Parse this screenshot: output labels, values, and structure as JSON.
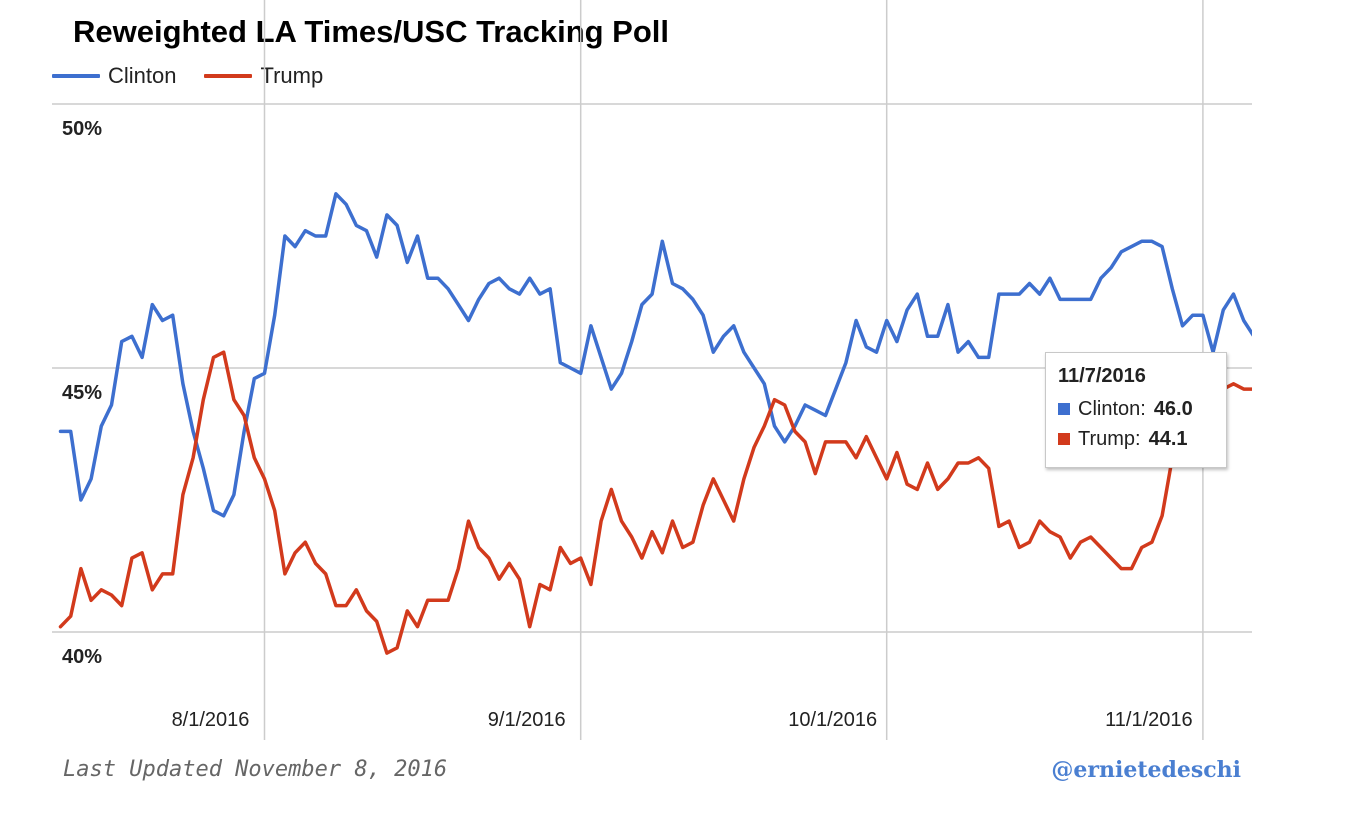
{
  "title": "Reweighted LA Times/USC Tracking Poll",
  "footer": {
    "updated": "Last Updated November 8, 2016",
    "credit": "@ernietedeschi"
  },
  "tooltip": {
    "date": "11/7/2016",
    "clinton_label": "Clinton:",
    "clinton_value": "46.0",
    "trump_label": "Trump:",
    "trump_value": "44.1"
  },
  "colors": {
    "clinton": "#3d6fcf",
    "trump": "#d23a1c",
    "grid": "#cccccc"
  },
  "chart_data": {
    "type": "line",
    "title": "Reweighted LA Times/USC Tracking Poll",
    "xlabel": "",
    "ylabel": "",
    "ylim": [
      40,
      50
    ],
    "yticks": [
      {
        "value": 50,
        "label": "50%"
      },
      {
        "value": 45,
        "label": "45%"
      },
      {
        "value": 40,
        "label": "40%"
      }
    ],
    "xticks": [
      {
        "date": "2016-08-01",
        "label": "8/1/2016"
      },
      {
        "date": "2016-09-01",
        "label": "9/1/2016"
      },
      {
        "date": "2016-10-01",
        "label": "10/1/2016"
      },
      {
        "date": "2016-11-01",
        "label": "11/1/2016"
      }
    ],
    "x_range": [
      "2016-07-12",
      "2016-11-07"
    ],
    "grid": true,
    "legend_position": "top-left",
    "series": [
      {
        "name": "Clinton",
        "color": "#3d6fcf",
        "points": [
          [
            "2016-07-12",
            43.8
          ],
          [
            "2016-07-13",
            43.8
          ],
          [
            "2016-07-14",
            42.5
          ],
          [
            "2016-07-15",
            42.9
          ],
          [
            "2016-07-16",
            43.9
          ],
          [
            "2016-07-17",
            44.3
          ],
          [
            "2016-07-18",
            45.5
          ],
          [
            "2016-07-19",
            45.6
          ],
          [
            "2016-07-20",
            45.2
          ],
          [
            "2016-07-21",
            46.2
          ],
          [
            "2016-07-22",
            45.9
          ],
          [
            "2016-07-23",
            46.0
          ],
          [
            "2016-07-24",
            44.7
          ],
          [
            "2016-07-25",
            43.8
          ],
          [
            "2016-07-26",
            43.1
          ],
          [
            "2016-07-27",
            42.3
          ],
          [
            "2016-07-28",
            42.2
          ],
          [
            "2016-07-29",
            42.6
          ],
          [
            "2016-07-30",
            43.8
          ],
          [
            "2016-07-31",
            44.8
          ],
          [
            "2016-08-01",
            44.9
          ],
          [
            "2016-08-02",
            46.0
          ],
          [
            "2016-08-03",
            47.5
          ],
          [
            "2016-08-04",
            47.3
          ],
          [
            "2016-08-05",
            47.6
          ],
          [
            "2016-08-06",
            47.5
          ],
          [
            "2016-08-07",
            47.5
          ],
          [
            "2016-08-08",
            48.3
          ],
          [
            "2016-08-09",
            48.1
          ],
          [
            "2016-08-10",
            47.7
          ],
          [
            "2016-08-11",
            47.6
          ],
          [
            "2016-08-12",
            47.1
          ],
          [
            "2016-08-13",
            47.9
          ],
          [
            "2016-08-14",
            47.7
          ],
          [
            "2016-08-15",
            47.0
          ],
          [
            "2016-08-16",
            47.5
          ],
          [
            "2016-08-17",
            46.7
          ],
          [
            "2016-08-18",
            46.7
          ],
          [
            "2016-08-19",
            46.5
          ],
          [
            "2016-08-20",
            46.2
          ],
          [
            "2016-08-21",
            45.9
          ],
          [
            "2016-08-22",
            46.3
          ],
          [
            "2016-08-23",
            46.6
          ],
          [
            "2016-08-24",
            46.7
          ],
          [
            "2016-08-25",
            46.5
          ],
          [
            "2016-08-26",
            46.4
          ],
          [
            "2016-08-27",
            46.7
          ],
          [
            "2016-08-28",
            46.4
          ],
          [
            "2016-08-29",
            46.5
          ],
          [
            "2016-08-30",
            45.1
          ],
          [
            "2016-08-31",
            45.0
          ],
          [
            "2016-09-01",
            44.9
          ],
          [
            "2016-09-02",
            45.8
          ],
          [
            "2016-09-03",
            45.2
          ],
          [
            "2016-09-04",
            44.6
          ],
          [
            "2016-09-05",
            44.9
          ],
          [
            "2016-09-06",
            45.5
          ],
          [
            "2016-09-07",
            46.2
          ],
          [
            "2016-09-08",
            46.4
          ],
          [
            "2016-09-09",
            47.4
          ],
          [
            "2016-09-10",
            46.6
          ],
          [
            "2016-09-11",
            46.5
          ],
          [
            "2016-09-12",
            46.3
          ],
          [
            "2016-09-13",
            46.0
          ],
          [
            "2016-09-14",
            45.3
          ],
          [
            "2016-09-15",
            45.6
          ],
          [
            "2016-09-16",
            45.8
          ],
          [
            "2016-09-17",
            45.3
          ],
          [
            "2016-09-18",
            45.0
          ],
          [
            "2016-09-19",
            44.7
          ],
          [
            "2016-09-20",
            43.9
          ],
          [
            "2016-09-21",
            43.6
          ],
          [
            "2016-09-22",
            43.9
          ],
          [
            "2016-09-23",
            44.3
          ],
          [
            "2016-09-24",
            44.2
          ],
          [
            "2016-09-25",
            44.1
          ],
          [
            "2016-09-26",
            44.6
          ],
          [
            "2016-09-27",
            45.1
          ],
          [
            "2016-09-28",
            45.9
          ],
          [
            "2016-09-29",
            45.4
          ],
          [
            "2016-09-30",
            45.3
          ],
          [
            "2016-10-01",
            45.9
          ],
          [
            "2016-10-02",
            45.5
          ],
          [
            "2016-10-03",
            46.1
          ],
          [
            "2016-10-04",
            46.4
          ],
          [
            "2016-10-05",
            45.6
          ],
          [
            "2016-10-06",
            45.6
          ],
          [
            "2016-10-07",
            46.2
          ],
          [
            "2016-10-08",
            45.3
          ],
          [
            "2016-10-09",
            45.5
          ],
          [
            "2016-10-10",
            45.2
          ],
          [
            "2016-10-11",
            45.2
          ],
          [
            "2016-10-12",
            46.4
          ],
          [
            "2016-10-13",
            46.4
          ],
          [
            "2016-10-14",
            46.4
          ],
          [
            "2016-10-15",
            46.6
          ],
          [
            "2016-10-16",
            46.4
          ],
          [
            "2016-10-17",
            46.7
          ],
          [
            "2016-10-18",
            46.3
          ],
          [
            "2016-10-19",
            46.3
          ],
          [
            "2016-10-20",
            46.3
          ],
          [
            "2016-10-21",
            46.3
          ],
          [
            "2016-10-22",
            46.7
          ],
          [
            "2016-10-23",
            46.9
          ],
          [
            "2016-10-24",
            47.2
          ],
          [
            "2016-10-25",
            47.3
          ],
          [
            "2016-10-26",
            47.4
          ],
          [
            "2016-10-27",
            47.4
          ],
          [
            "2016-10-28",
            47.3
          ],
          [
            "2016-10-29",
            46.5
          ],
          [
            "2016-10-30",
            45.8
          ],
          [
            "2016-10-31",
            46.0
          ],
          [
            "2016-11-01",
            46.0
          ],
          [
            "2016-11-02",
            45.3
          ],
          [
            "2016-11-03",
            46.1
          ],
          [
            "2016-11-04",
            46.4
          ],
          [
            "2016-11-05",
            45.9
          ],
          [
            "2016-11-06",
            45.6
          ],
          [
            "2016-11-07",
            46.0
          ]
        ]
      },
      {
        "name": "Trump",
        "color": "#d23a1c",
        "points": [
          [
            "2016-07-12",
            40.1
          ],
          [
            "2016-07-13",
            40.3
          ],
          [
            "2016-07-14",
            41.2
          ],
          [
            "2016-07-15",
            40.6
          ],
          [
            "2016-07-16",
            40.8
          ],
          [
            "2016-07-17",
            40.7
          ],
          [
            "2016-07-18",
            40.5
          ],
          [
            "2016-07-19",
            41.4
          ],
          [
            "2016-07-20",
            41.5
          ],
          [
            "2016-07-21",
            40.8
          ],
          [
            "2016-07-22",
            41.1
          ],
          [
            "2016-07-23",
            41.1
          ],
          [
            "2016-07-24",
            42.6
          ],
          [
            "2016-07-25",
            43.3
          ],
          [
            "2016-07-26",
            44.4
          ],
          [
            "2016-07-27",
            45.2
          ],
          [
            "2016-07-28",
            45.3
          ],
          [
            "2016-07-29",
            44.4
          ],
          [
            "2016-07-30",
            44.1
          ],
          [
            "2016-07-31",
            43.3
          ],
          [
            "2016-08-01",
            42.9
          ],
          [
            "2016-08-02",
            42.3
          ],
          [
            "2016-08-03",
            41.1
          ],
          [
            "2016-08-04",
            41.5
          ],
          [
            "2016-08-05",
            41.7
          ],
          [
            "2016-08-06",
            41.3
          ],
          [
            "2016-08-07",
            41.1
          ],
          [
            "2016-08-08",
            40.5
          ],
          [
            "2016-08-09",
            40.5
          ],
          [
            "2016-08-10",
            40.8
          ],
          [
            "2016-08-11",
            40.4
          ],
          [
            "2016-08-12",
            40.2
          ],
          [
            "2016-08-13",
            39.6
          ],
          [
            "2016-08-14",
            39.7
          ],
          [
            "2016-08-15",
            40.4
          ],
          [
            "2016-08-16",
            40.1
          ],
          [
            "2016-08-17",
            40.6
          ],
          [
            "2016-08-18",
            40.6
          ],
          [
            "2016-08-19",
            40.6
          ],
          [
            "2016-08-20",
            41.2
          ],
          [
            "2016-08-21",
            42.1
          ],
          [
            "2016-08-22",
            41.6
          ],
          [
            "2016-08-23",
            41.4
          ],
          [
            "2016-08-24",
            41.0
          ],
          [
            "2016-08-25",
            41.3
          ],
          [
            "2016-08-26",
            41.0
          ],
          [
            "2016-08-27",
            40.1
          ],
          [
            "2016-08-28",
            40.9
          ],
          [
            "2016-08-29",
            40.8
          ],
          [
            "2016-08-30",
            41.6
          ],
          [
            "2016-08-31",
            41.3
          ],
          [
            "2016-09-01",
            41.4
          ],
          [
            "2016-09-02",
            40.9
          ],
          [
            "2016-09-03",
            42.1
          ],
          [
            "2016-09-04",
            42.7
          ],
          [
            "2016-09-05",
            42.1
          ],
          [
            "2016-09-06",
            41.8
          ],
          [
            "2016-09-07",
            41.4
          ],
          [
            "2016-09-08",
            41.9
          ],
          [
            "2016-09-09",
            41.5
          ],
          [
            "2016-09-10",
            42.1
          ],
          [
            "2016-09-11",
            41.6
          ],
          [
            "2016-09-12",
            41.7
          ],
          [
            "2016-09-13",
            42.4
          ],
          [
            "2016-09-14",
            42.9
          ],
          [
            "2016-09-15",
            42.5
          ],
          [
            "2016-09-16",
            42.1
          ],
          [
            "2016-09-17",
            42.9
          ],
          [
            "2016-09-18",
            43.5
          ],
          [
            "2016-09-19",
            43.9
          ],
          [
            "2016-09-20",
            44.4
          ],
          [
            "2016-09-21",
            44.3
          ],
          [
            "2016-09-22",
            43.8
          ],
          [
            "2016-09-23",
            43.6
          ],
          [
            "2016-09-24",
            43.0
          ],
          [
            "2016-09-25",
            43.6
          ],
          [
            "2016-09-26",
            43.6
          ],
          [
            "2016-09-27",
            43.6
          ],
          [
            "2016-09-28",
            43.3
          ],
          [
            "2016-09-29",
            43.7
          ],
          [
            "2016-09-30",
            43.3
          ],
          [
            "2016-10-01",
            42.9
          ],
          [
            "2016-10-02",
            43.4
          ],
          [
            "2016-10-03",
            42.8
          ],
          [
            "2016-10-04",
            42.7
          ],
          [
            "2016-10-05",
            43.2
          ],
          [
            "2016-10-06",
            42.7
          ],
          [
            "2016-10-07",
            42.9
          ],
          [
            "2016-10-08",
            43.2
          ],
          [
            "2016-10-09",
            43.2
          ],
          [
            "2016-10-10",
            43.3
          ],
          [
            "2016-10-11",
            43.1
          ],
          [
            "2016-10-12",
            42.0
          ],
          [
            "2016-10-13",
            42.1
          ],
          [
            "2016-10-14",
            41.6
          ],
          [
            "2016-10-15",
            41.7
          ],
          [
            "2016-10-16",
            42.1
          ],
          [
            "2016-10-17",
            41.9
          ],
          [
            "2016-10-18",
            41.8
          ],
          [
            "2016-10-19",
            41.4
          ],
          [
            "2016-10-20",
            41.7
          ],
          [
            "2016-10-21",
            41.8
          ],
          [
            "2016-10-22",
            41.6
          ],
          [
            "2016-10-23",
            41.4
          ],
          [
            "2016-10-24",
            41.2
          ],
          [
            "2016-10-25",
            41.2
          ],
          [
            "2016-10-26",
            41.6
          ],
          [
            "2016-10-27",
            41.7
          ],
          [
            "2016-10-28",
            42.2
          ],
          [
            "2016-10-29",
            43.3
          ],
          [
            "2016-10-30",
            43.7
          ],
          [
            "2016-10-31",
            44.2
          ],
          [
            "2016-11-01",
            44.0
          ],
          [
            "2016-11-02",
            44.4
          ],
          [
            "2016-11-03",
            44.6
          ],
          [
            "2016-11-04",
            44.7
          ],
          [
            "2016-11-05",
            44.6
          ],
          [
            "2016-11-06",
            44.6
          ],
          [
            "2016-11-07",
            44.1
          ]
        ]
      }
    ]
  }
}
